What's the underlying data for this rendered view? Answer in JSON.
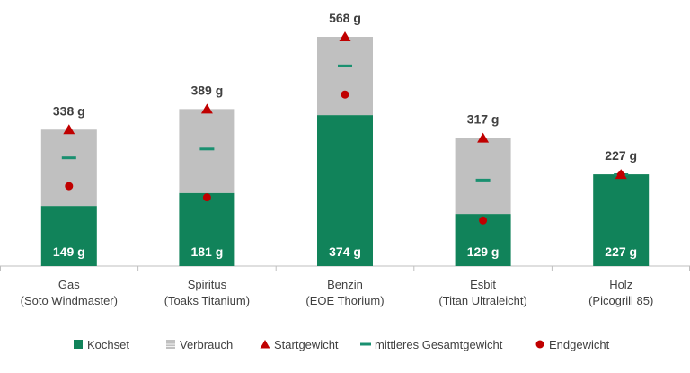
{
  "chart_data": {
    "type": "bar",
    "title": "",
    "xlabel": "",
    "ylabel": "",
    "stacked": true,
    "ylim": [
      0,
      600
    ],
    "categories": [
      [
        "Gas",
        "(Soto Windmaster)"
      ],
      [
        "Spiritus",
        "(Toaks Titanium)"
      ],
      [
        "Benzin",
        "(EOE Thorium)"
      ],
      [
        "Esbit",
        "(Titan Ultraleicht)"
      ],
      [
        "Holz",
        "(Picogrill 85)"
      ]
    ],
    "unit": "g",
    "series": [
      {
        "name": "Kochset",
        "type": "bar",
        "color": "#11835a",
        "values": [
          149,
          181,
          374,
          129,
          227
        ]
      },
      {
        "name": "Verbrauch",
        "type": "bar",
        "color": "#c0c0c0",
        "values": [
          189,
          208,
          194,
          188,
          0
        ]
      },
      {
        "name": "Startgewicht",
        "type": "marker",
        "marker": "triangle",
        "color": "#c00000",
        "values": [
          338,
          389,
          568,
          317,
          227
        ]
      },
      {
        "name": "mittleres Gesamtgewicht",
        "type": "marker",
        "marker": "dash",
        "color": "#1a9070",
        "values": [
          268,
          290,
          496,
          213,
          227
        ]
      },
      {
        "name": "Endgewicht",
        "type": "marker",
        "marker": "circle",
        "color": "#c00000",
        "values": [
          198,
          170,
          425,
          113,
          227
        ]
      }
    ],
    "total_labels": [
      "338 g",
      "389 g",
      "568 g",
      "317 g",
      "227 g"
    ],
    "base_labels": [
      "149 g",
      "181 g",
      "374 g",
      "129 g",
      "227 g"
    ],
    "legend": {
      "position": "bottom"
    }
  }
}
